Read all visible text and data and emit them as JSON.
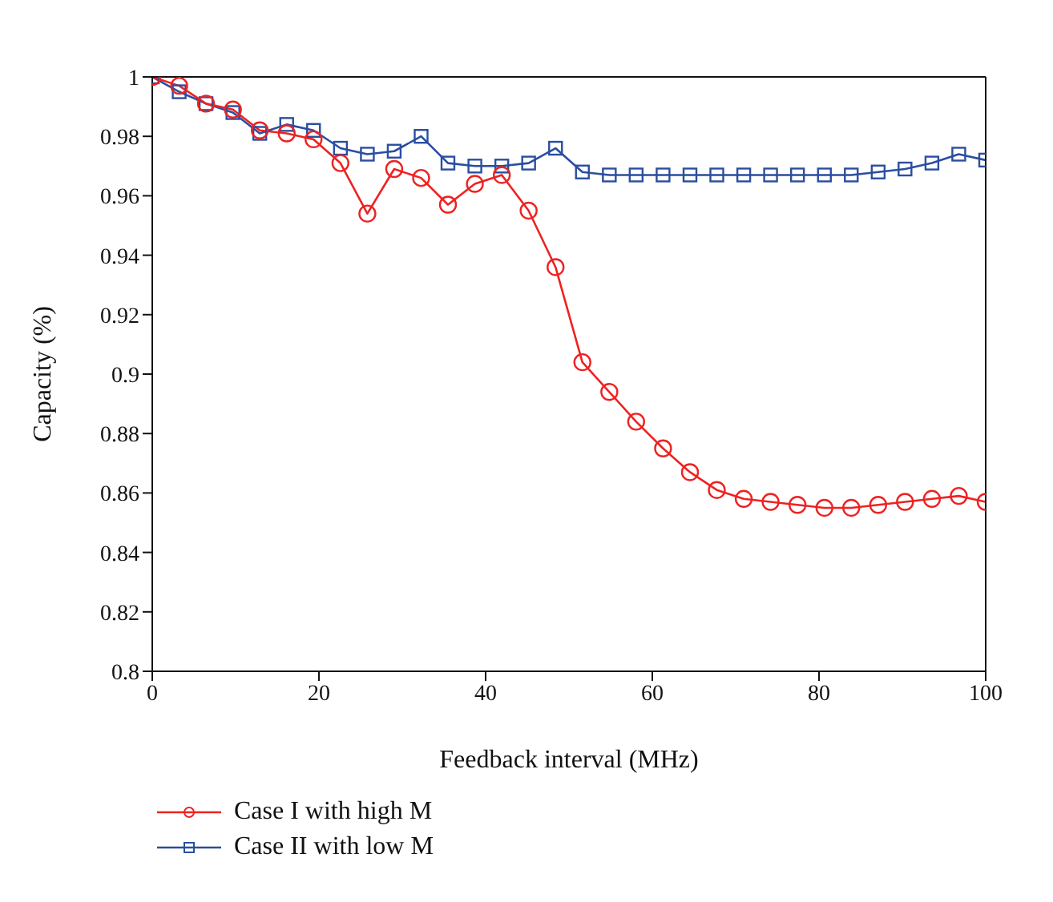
{
  "chart_data": {
    "type": "line",
    "xlabel": "Feedback interval (MHz)",
    "ylabel": "Capacity (%)",
    "x": [
      0,
      3.23,
      6.45,
      9.68,
      12.9,
      16.13,
      19.35,
      22.58,
      25.81,
      29.03,
      32.26,
      35.48,
      38.71,
      41.94,
      45.16,
      48.39,
      51.61,
      54.84,
      58.06,
      61.29,
      64.52,
      67.74,
      70.97,
      74.19,
      77.42,
      80.65,
      83.87,
      87.1,
      90.32,
      93.55,
      96.77,
      100
    ],
    "series": [
      {
        "name": "Case I with high M",
        "color": "#ee2222",
        "marker": "circle",
        "values": [
          1,
          0.997,
          0.991,
          0.989,
          0.982,
          0.981,
          0.979,
          0.971,
          0.954,
          0.969,
          0.966,
          0.957,
          0.964,
          0.967,
          0.955,
          0.936,
          0.904,
          0.894,
          0.884,
          0.875,
          0.867,
          0.861,
          0.858,
          0.857,
          0.856,
          0.855,
          0.855,
          0.856,
          0.857,
          0.858,
          0.859,
          0.857
        ]
      },
      {
        "name": "Case II with low M",
        "color": "#2a4ea0",
        "marker": "square",
        "values": [
          1,
          0.995,
          0.991,
          0.988,
          0.981,
          0.984,
          0.982,
          0.976,
          0.974,
          0.975,
          0.98,
          0.971,
          0.97,
          0.97,
          0.971,
          0.976,
          0.968,
          0.967,
          0.967,
          0.967,
          0.967,
          0.967,
          0.967,
          0.967,
          0.967,
          0.967,
          0.967,
          0.968,
          0.969,
          0.971,
          0.974,
          0.972
        ]
      }
    ],
    "xlim": [
      0,
      100
    ],
    "xticks": [
      0,
      20,
      40,
      60,
      80,
      100
    ],
    "ylim": [
      0.8,
      1
    ],
    "yticks": [
      0.8,
      0.82,
      0.84,
      0.86,
      0.88,
      0.9,
      0.92,
      0.94,
      0.96,
      0.98,
      1
    ],
    "grid": false,
    "legend": "bottom left",
    "line_style": "solid"
  }
}
